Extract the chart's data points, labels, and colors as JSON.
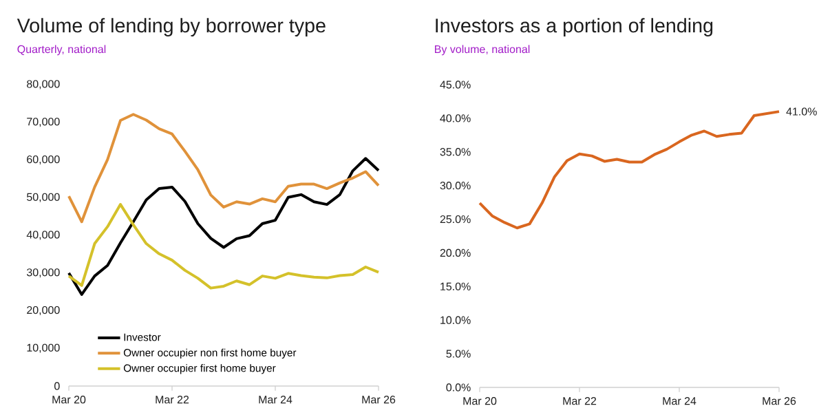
{
  "chart_data": [
    {
      "type": "line",
      "title": "Volume of lending by borrower type",
      "subtitle": "Quarterly, national",
      "x": [
        "2020-03",
        "2020-06",
        "2020-09",
        "2020-12",
        "2021-03",
        "2021-06",
        "2021-09",
        "2021-12",
        "2022-03",
        "2022-06",
        "2022-09",
        "2022-12",
        "2023-03",
        "2023-06",
        "2023-09",
        "2023-12",
        "2024-03",
        "2024-06",
        "2024-09",
        "2024-12",
        "2025-03",
        "2025-06",
        "2025-09",
        "2025-12",
        "2026-03"
      ],
      "series": [
        {
          "name": "Investor",
          "color": "#000000",
          "values": [
            30000,
            24300,
            29200,
            32000,
            38000,
            43600,
            49400,
            52400,
            52800,
            49000,
            43100,
            39200,
            36800,
            39100,
            39900,
            43100,
            44000,
            50100,
            50800,
            48900,
            48200,
            50800,
            57100,
            60400,
            57200
          ]
        },
        {
          "name": "Owner occupier non first home buyer",
          "color": "#e0923a",
          "values": [
            50400,
            43600,
            52800,
            60100,
            70500,
            72100,
            70600,
            68300,
            66900,
            62300,
            57400,
            50700,
            47500,
            48900,
            48300,
            49700,
            48900,
            53000,
            53600,
            53600,
            52400,
            53900,
            55200,
            56900,
            53200
          ]
        },
        {
          "name": "Owner occupier first home buyer",
          "color": "#d4c12a",
          "values": [
            29200,
            26700,
            37800,
            42300,
            48200,
            42800,
            37800,
            35100,
            33400,
            30700,
            28600,
            26000,
            26500,
            27900,
            26900,
            29200,
            28600,
            29900,
            29300,
            28900,
            28700,
            29300,
            29600,
            31600,
            30200
          ]
        }
      ],
      "xlim": [
        "2020-03",
        "2026-03"
      ],
      "xticks": [
        {
          "value": "2020-03",
          "label": "Mar 20"
        },
        {
          "value": "2022-03",
          "label": "Mar 22"
        },
        {
          "value": "2024-03",
          "label": "Mar 24"
        },
        {
          "value": "2026-03",
          "label": "Mar 26"
        }
      ],
      "ylim": [
        0,
        80000
      ],
      "yticks": [
        0,
        {
          "value": 10000,
          "label": "10,000"
        },
        {
          "value": 20000,
          "label": "20,000"
        },
        {
          "value": 30000,
          "label": "30,000"
        },
        {
          "value": 40000,
          "label": "40,000"
        },
        {
          "value": 50000,
          "label": "50,000"
        },
        {
          "value": 60000,
          "label": "60,000"
        },
        {
          "value": 70000,
          "label": "70,000"
        },
        {
          "value": 80000,
          "label": "80,000"
        }
      ],
      "legend": "bottom left",
      "grid": false
    },
    {
      "type": "line",
      "title": "Investors as a portion of lending",
      "subtitle": "By volume, national",
      "x": [
        "2020-03",
        "2020-06",
        "2020-09",
        "2020-12",
        "2021-03",
        "2021-06",
        "2021-09",
        "2021-12",
        "2022-03",
        "2022-06",
        "2022-09",
        "2022-12",
        "2023-03",
        "2023-06",
        "2023-09",
        "2023-12",
        "2024-03",
        "2024-06",
        "2024-09",
        "2024-12",
        "2025-03",
        "2025-06",
        "2025-09",
        "2025-12",
        "2026-03"
      ],
      "series": [
        {
          "color": "#d9661f",
          "values": [
            27.4,
            25.5,
            24.5,
            23.7,
            24.3,
            27.4,
            31.3,
            33.7,
            34.7,
            34.4,
            33.6,
            33.9,
            33.5,
            33.5,
            34.6,
            35.4,
            36.5,
            37.5,
            38.1,
            37.3,
            37.6,
            37.8,
            40.4,
            40.7,
            41.0
          ]
        }
      ],
      "annotations": [
        {
          "text": "41.0%",
          "x": "2026-03",
          "y": 41.0
        }
      ],
      "xlim": [
        "2020-03",
        "2026-03"
      ],
      "xticks": [
        {
          "value": "2020-03",
          "label": "Mar 20"
        },
        {
          "value": "2022-03",
          "label": "Mar 22"
        },
        {
          "value": "2024-03",
          "label": "Mar 24"
        },
        {
          "value": "2026-03",
          "label": "Mar 26"
        }
      ],
      "ylim": [
        0,
        45
      ],
      "yticks": [
        {
          "value": 0,
          "label": "0.0%"
        },
        {
          "value": 5,
          "label": "5.0%"
        },
        {
          "value": 10,
          "label": "10.0%"
        },
        {
          "value": 15,
          "label": "15.0%"
        },
        {
          "value": 20,
          "label": "20.0%"
        },
        {
          "value": 25,
          "label": "25.0%"
        },
        {
          "value": 30,
          "label": "30.0%"
        },
        {
          "value": 35,
          "label": "35.0%"
        },
        {
          "value": 40,
          "label": "40.0%"
        },
        {
          "value": 45,
          "label": "45.0%"
        }
      ],
      "grid": false
    }
  ]
}
